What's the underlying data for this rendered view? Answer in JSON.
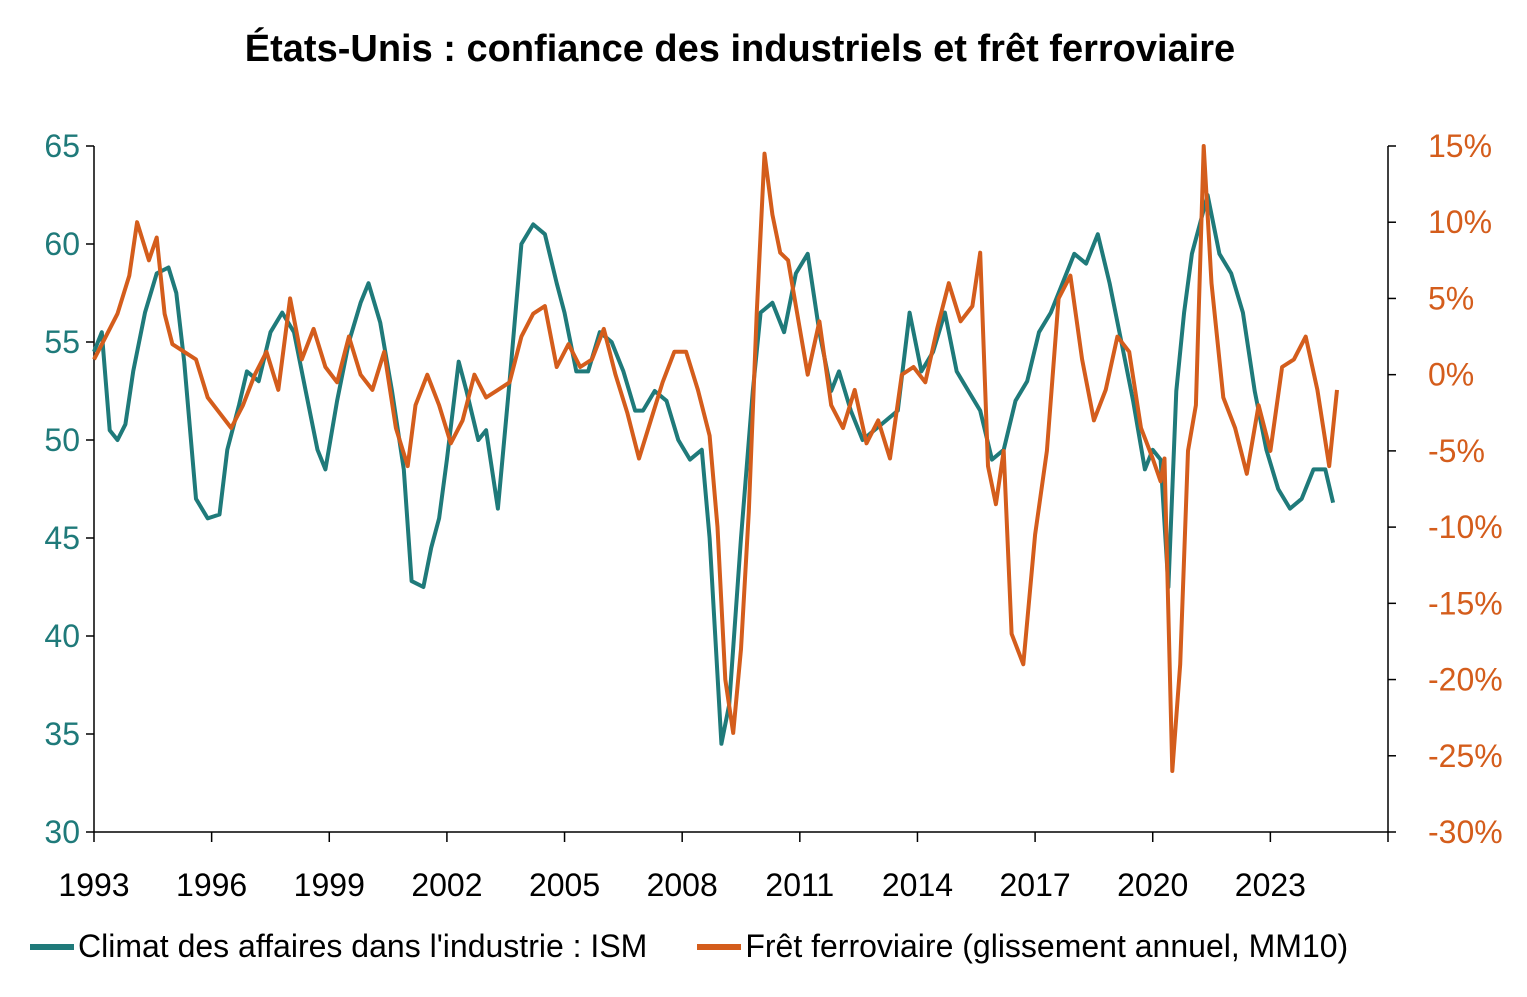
{
  "chart_data": {
    "type": "line",
    "title": "États-Unis : confiance des industriels et frêt ferroviaire",
    "x_ticks": [
      "1993",
      "1996",
      "1999",
      "2002",
      "2005",
      "2008",
      "2011",
      "2014",
      "2017",
      "2020",
      "2023"
    ],
    "x_range": [
      1993,
      2026
    ],
    "y_left": {
      "ticks": [
        "30",
        "35",
        "40",
        "45",
        "50",
        "55",
        "60",
        "65"
      ],
      "range": [
        30,
        65
      ]
    },
    "y_right": {
      "ticks": [
        "-30%",
        "-25%",
        "-20%",
        "-15%",
        "-10%",
        "-5%",
        "0%",
        "5%",
        "10%",
        "15%"
      ],
      "range": [
        -30,
        15
      ]
    },
    "grid": false,
    "legend_position": "bottom",
    "series": [
      {
        "name": "Climat des affaires dans l'industrie : ISM",
        "axis": "left",
        "color": "#1f7a7a",
        "x": [
          1993.0,
          1993.2,
          1993.4,
          1993.6,
          1993.8,
          1994.0,
          1994.3,
          1994.6,
          1994.9,
          1995.1,
          1995.3,
          1995.6,
          1995.9,
          1996.2,
          1996.4,
          1996.7,
          1996.9,
          1997.2,
          1997.5,
          1997.8,
          1998.1,
          1998.4,
          1998.7,
          1998.9,
          1999.2,
          1999.5,
          1999.8,
          2000.0,
          2000.3,
          2000.6,
          2000.9,
          2001.1,
          2001.4,
          2001.6,
          2001.8,
          2002.0,
          2002.3,
          2002.5,
          2002.8,
          2003.0,
          2003.3,
          2003.6,
          2003.9,
          2004.2,
          2004.5,
          2004.8,
          2005.0,
          2005.3,
          2005.6,
          2005.9,
          2006.2,
          2006.5,
          2006.8,
          2007.0,
          2007.3,
          2007.6,
          2007.9,
          2008.2,
          2008.5,
          2008.7,
          2008.9,
          2009.0,
          2009.2,
          2009.5,
          2009.8,
          2010.0,
          2010.3,
          2010.6,
          2010.9,
          2011.2,
          2011.5,
          2011.8,
          2012.0,
          2012.3,
          2012.6,
          2012.9,
          2013.2,
          2013.5,
          2013.8,
          2014.1,
          2014.4,
          2014.7,
          2015.0,
          2015.3,
          2015.6,
          2015.9,
          2016.2,
          2016.5,
          2016.8,
          2017.1,
          2017.4,
          2017.7,
          2018.0,
          2018.3,
          2018.6,
          2018.9,
          2019.2,
          2019.5,
          2019.8,
          2020.0,
          2020.2,
          2020.4,
          2020.6,
          2020.8,
          2021.0,
          2021.2,
          2021.4,
          2021.7,
          2022.0,
          2022.3,
          2022.6,
          2022.9,
          2023.2,
          2023.5,
          2023.8,
          2024.1,
          2024.4,
          2024.6
        ],
        "y": [
          54.5,
          55.5,
          50.5,
          50.0,
          50.8,
          53.5,
          56.5,
          58.5,
          58.8,
          57.5,
          54.0,
          47.0,
          46.0,
          46.2,
          49.5,
          51.8,
          53.5,
          53.0,
          55.5,
          56.5,
          55.5,
          52.5,
          49.5,
          48.5,
          52.0,
          55.0,
          57.0,
          58.0,
          56.0,
          52.5,
          48.5,
          42.8,
          42.5,
          44.5,
          46.0,
          49.0,
          54.0,
          52.5,
          50.0,
          50.5,
          46.5,
          53.0,
          60.0,
          61.0,
          60.5,
          58.0,
          56.5,
          53.5,
          53.5,
          55.5,
          55.0,
          53.5,
          51.5,
          51.5,
          52.5,
          52.0,
          50.0,
          49.0,
          49.5,
          45.0,
          38.0,
          34.5,
          36.5,
          45.0,
          52.5,
          56.5,
          57.0,
          55.5,
          58.5,
          59.5,
          55.5,
          52.5,
          53.5,
          51.5,
          50.0,
          50.5,
          51.0,
          51.5,
          56.5,
          53.5,
          54.5,
          56.5,
          53.5,
          52.5,
          51.5,
          49.0,
          49.5,
          52.0,
          53.0,
          55.5,
          56.5,
          58.0,
          59.5,
          59.0,
          60.5,
          58.0,
          55.0,
          52.0,
          48.5,
          49.5,
          49.0,
          42.5,
          52.5,
          56.5,
          59.5,
          61.0,
          62.5,
          59.5,
          58.5,
          56.5,
          52.5,
          49.5,
          47.5,
          46.5,
          47.0,
          48.5,
          48.5,
          46.8
        ]
      },
      {
        "name": "Frêt ferroviaire (glissement annuel, MM10)",
        "axis": "right",
        "color": "#d45d1c",
        "x": [
          1993.0,
          1993.3,
          1993.6,
          1993.9,
          1994.1,
          1994.4,
          1994.6,
          1994.8,
          1995.0,
          1995.3,
          1995.6,
          1995.9,
          1996.2,
          1996.5,
          1996.8,
          1997.1,
          1997.4,
          1997.7,
          1998.0,
          1998.3,
          1998.6,
          1998.9,
          1999.2,
          1999.5,
          1999.8,
          2000.1,
          2000.4,
          2000.7,
          2001.0,
          2001.2,
          2001.5,
          2001.8,
          2002.1,
          2002.4,
          2002.7,
          2003.0,
          2003.3,
          2003.6,
          2003.9,
          2004.2,
          2004.5,
          2004.8,
          2005.1,
          2005.4,
          2005.7,
          2006.0,
          2006.3,
          2006.6,
          2006.9,
          2007.2,
          2007.5,
          2007.8,
          2008.1,
          2008.4,
          2008.7,
          2008.9,
          2009.1,
          2009.3,
          2009.5,
          2009.7,
          2009.9,
          2010.1,
          2010.3,
          2010.5,
          2010.7,
          2010.9,
          2011.2,
          2011.5,
          2011.8,
          2012.1,
          2012.4,
          2012.7,
          2013.0,
          2013.3,
          2013.6,
          2013.9,
          2014.2,
          2014.5,
          2014.8,
          2015.1,
          2015.4,
          2015.6,
          2015.8,
          2016.0,
          2016.2,
          2016.4,
          2016.7,
          2017.0,
          2017.3,
          2017.6,
          2017.9,
          2018.2,
          2018.5,
          2018.8,
          2019.1,
          2019.4,
          2019.7,
          2020.0,
          2020.2,
          2020.3,
          2020.5,
          2020.7,
          2020.9,
          2021.1,
          2021.3,
          2021.5,
          2021.8,
          2022.1,
          2022.4,
          2022.7,
          2023.0,
          2023.3,
          2023.6,
          2023.9,
          2024.2,
          2024.5,
          2024.7
        ],
        "y": [
          1.0,
          2.5,
          4.0,
          6.5,
          10.0,
          7.5,
          9.0,
          4.0,
          2.0,
          1.5,
          1.0,
          -1.5,
          -2.5,
          -3.5,
          -2.0,
          0.0,
          1.5,
          -1.0,
          5.0,
          1.0,
          3.0,
          0.5,
          -0.5,
          2.5,
          0.0,
          -1.0,
          1.5,
          -3.5,
          -6.0,
          -2.0,
          0.0,
          -2.0,
          -4.5,
          -3.0,
          0.0,
          -1.5,
          -1.0,
          -0.5,
          2.5,
          4.0,
          4.5,
          0.5,
          2.0,
          0.5,
          1.0,
          3.0,
          0.0,
          -2.5,
          -5.5,
          -3.0,
          -0.5,
          1.5,
          1.5,
          -1.0,
          -4.0,
          -10.0,
          -20.0,
          -23.5,
          -18.0,
          -9.0,
          4.0,
          14.5,
          10.5,
          8.0,
          7.5,
          4.5,
          0.0,
          3.5,
          -2.0,
          -3.5,
          -1.0,
          -4.5,
          -3.0,
          -5.5,
          0.0,
          0.5,
          -0.5,
          3.0,
          6.0,
          3.5,
          4.5,
          8.0,
          -6.0,
          -8.5,
          -5.0,
          -17.0,
          -19.0,
          -10.5,
          -5.0,
          5.0,
          6.5,
          1.0,
          -3.0,
          -1.0,
          2.5,
          1.5,
          -3.5,
          -5.5,
          -7.0,
          -5.5,
          -26.0,
          -19.0,
          -5.0,
          -2.0,
          20.0,
          6.0,
          -1.5,
          -3.5,
          -6.5,
          -2.0,
          -5.0,
          0.5,
          1.0,
          2.5,
          -1.0,
          -6.0,
          -1.0
        ]
      }
    ]
  }
}
